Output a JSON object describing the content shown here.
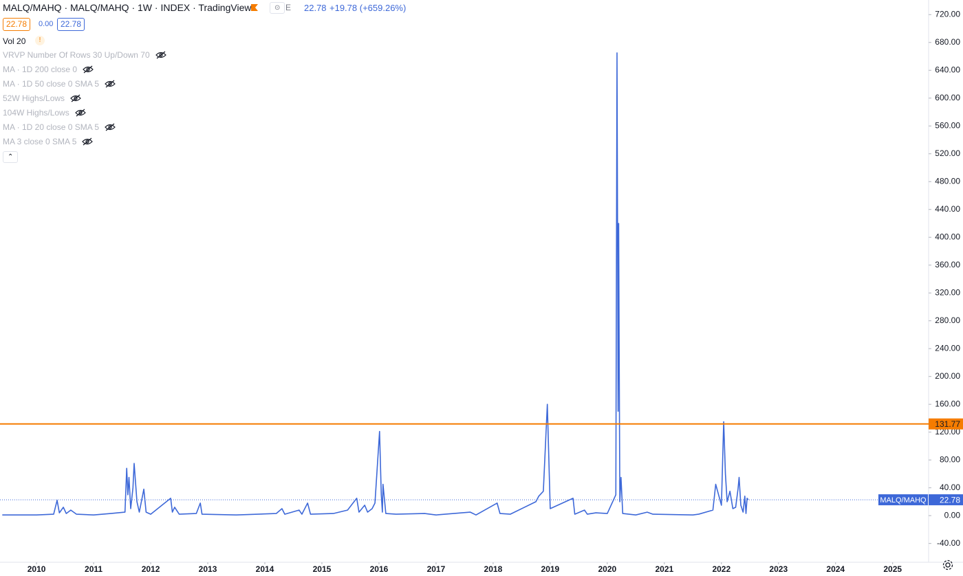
{
  "header": {
    "title": "MALQ/MAHQ · MALQ/MAHQ · 1W · INDEX · TradingView",
    "exchange_badge": "E",
    "last": "22.78",
    "change": "+19.78 (+659.26%)",
    "bid": "22.78",
    "spread": "0.00",
    "ask": "22.78",
    "volume": "Vol 20",
    "warning": "!"
  },
  "indicators": [
    "VRVP Number Of Rows 30 Up/Down 70",
    "MA · 1D 200 close 0",
    "MA · 1D 50 close 0 SMA 5",
    "52W Highs/Lows",
    "104W Highs/Lows",
    "MA · 1D 20 close 0 SMA 5",
    "MA 3 close 0 SMA 5"
  ],
  "chart_data": {
    "type": "line",
    "x": [
      2009.4,
      2010.0,
      2010.3,
      2010.36,
      2010.4,
      2010.47,
      2010.52,
      2010.6,
      2010.7,
      2011.0,
      2011.3,
      2011.55,
      2011.58,
      2011.6,
      2011.62,
      2011.65,
      2011.69,
      2011.71,
      2011.76,
      2011.8,
      2011.88,
      2011.92,
      2012.0,
      2012.35,
      2012.38,
      2012.42,
      2012.5,
      2012.8,
      2012.87,
      2012.9,
      2013.5,
      2014.2,
      2014.3,
      2014.35,
      2014.6,
      2014.65,
      2014.75,
      2014.8,
      2015.2,
      2015.45,
      2015.61,
      2015.65,
      2015.75,
      2015.8,
      2015.88,
      2015.93,
      2016.01,
      2016.04,
      2016.06,
      2016.07,
      2016.12,
      2016.3,
      2016.8,
      2017.0,
      2017.6,
      2017.7,
      2018.07,
      2018.12,
      2018.3,
      2018.75,
      2018.8,
      2018.88,
      2018.95,
      2019.0,
      2019.4,
      2019.43,
      2019.6,
      2019.65,
      2019.8,
      2020.0,
      2020.15,
      2020.17,
      2020.19,
      2020.2,
      2020.22,
      2020.24,
      2020.27,
      2020.5,
      2020.7,
      2020.8,
      2021.5,
      2021.6,
      2021.85,
      2021.9,
      2022.0,
      2022.04,
      2022.07,
      2022.1,
      2022.15,
      2022.2,
      2022.25,
      2022.29,
      2022.31,
      2022.34,
      2022.38,
      2022.41,
      2022.43,
      2022.45,
      2022.47
    ],
    "series": [
      {
        "name": "MALQ/MAHQ",
        "color": "#3d68d8",
        "values": [
          1,
          1,
          2,
          22,
          4,
          12,
          3,
          8,
          2,
          1,
          3,
          5,
          68,
          30,
          55,
          10,
          40,
          75,
          20,
          5,
          38,
          5,
          2,
          25,
          5,
          12,
          2,
          3,
          18,
          2,
          1,
          3,
          10,
          2,
          8,
          2,
          18,
          2,
          3,
          8,
          25,
          5,
          15,
          5,
          10,
          18,
          121,
          30,
          5,
          45,
          3,
          2,
          3,
          1,
          5,
          1,
          18,
          3,
          2,
          20,
          28,
          35,
          160,
          10,
          25,
          2,
          8,
          2,
          4,
          3,
          30,
          665,
          150,
          420,
          20,
          55,
          3,
          1,
          5,
          2,
          1,
          2,
          8,
          45,
          15,
          135,
          60,
          20,
          35,
          10,
          12,
          38,
          55,
          15,
          5,
          28,
          3,
          25,
          22.78
        ]
      }
    ],
    "xlim": [
      2009.36,
      2025.63
    ],
    "xticks": [
      2010,
      2011,
      2012,
      2013,
      2014,
      2015,
      2016,
      2017,
      2018,
      2019,
      2020,
      2021,
      2022,
      2023,
      2024,
      2025
    ],
    "ylim": [
      -67,
      741
    ],
    "yticks": [
      {
        "value": -40,
        "label": "-40.00"
      },
      {
        "value": 0,
        "label": "0.00"
      },
      {
        "value": 40,
        "label": "40.00"
      },
      {
        "value": 80,
        "label": "80.00"
      },
      {
        "value": 120,
        "label": "120.00"
      },
      {
        "value": 160,
        "label": "160.00"
      },
      {
        "value": 200,
        "label": "200.00"
      },
      {
        "value": 240,
        "label": "240.00"
      },
      {
        "value": 280,
        "label": "280.00"
      },
      {
        "value": 320,
        "label": "320.00"
      },
      {
        "value": 360,
        "label": "360.00"
      },
      {
        "value": 400,
        "label": "400.00"
      },
      {
        "value": 440,
        "label": "440.00"
      },
      {
        "value": 480,
        "label": "480.00"
      },
      {
        "value": 520,
        "label": "520.00"
      },
      {
        "value": 560,
        "label": "560.00"
      },
      {
        "value": 600,
        "label": "600.00"
      },
      {
        "value": 640,
        "label": "640.00"
      },
      {
        "value": 680,
        "label": "680.00"
      },
      {
        "value": 720,
        "label": "720.00"
      }
    ],
    "level": {
      "value": 131.77,
      "color": "#f57c00"
    },
    "last_price": {
      "name": "MALQ/MAHQ",
      "value": 22.78
    }
  }
}
